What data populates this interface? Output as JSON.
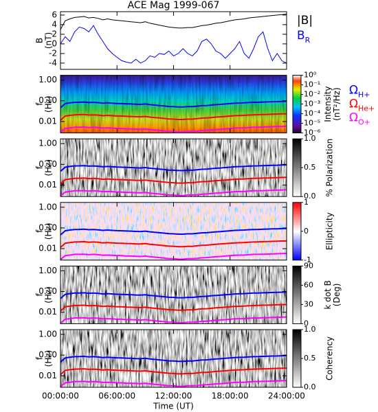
{
  "chart_data": [
    {
      "type": "line",
      "title": "ACE Mag 1999-067",
      "ylabel": [
        "B",
        "(nT)"
      ],
      "x": [
        0,
        0.5,
        1,
        1.5,
        2,
        2.5,
        3,
        3.5,
        4,
        4.5,
        5,
        5.5,
        6,
        6.5,
        7,
        7.5,
        8,
        8.5,
        9,
        9.5,
        10,
        10.5,
        11,
        11.5,
        12,
        12.5,
        13,
        13.5,
        14,
        14.5,
        15,
        15.5,
        16,
        16.5,
        17,
        17.5,
        18,
        18.5,
        19,
        19.5,
        20,
        20.5,
        21,
        21.5,
        22,
        22.5,
        23,
        23.5,
        24
      ],
      "xlim": [
        0,
        24
      ],
      "ylim": [
        -5.3,
        6.7
      ],
      "yticks": [
        -4,
        -2,
        0,
        2,
        4,
        6
      ],
      "series": [
        {
          "name": "|B|",
          "color": "#000000",
          "values": [
            3.0,
            4.8,
            5.2,
            5.5,
            5.6,
            5.7,
            5.4,
            5.5,
            5.3,
            5.0,
            5.2,
            5.0,
            4.9,
            4.8,
            4.7,
            4.6,
            4.5,
            4.4,
            4.6,
            4.3,
            4.1,
            3.9,
            3.7,
            3.5,
            3.4,
            3.3,
            3.3,
            3.4,
            3.4,
            3.6,
            3.8,
            3.9,
            4.1,
            4.3,
            4.4,
            4.6,
            4.8,
            5.0,
            5.1,
            5.2,
            5.4,
            5.5,
            5.6,
            5.7,
            5.8,
            5.9,
            6.0,
            6.1,
            6.2
          ]
        },
        {
          "name": "B",
          "subscript": "R",
          "color": "#0000ff",
          "values": [
            0,
            1.5,
            0.5,
            2.5,
            3.5,
            3.2,
            2.5,
            3.8,
            2.0,
            0.5,
            -1.0,
            -2.0,
            -2.8,
            -3.5,
            -3.8,
            -4.0,
            -3.2,
            -4.0,
            -3.5,
            -2.5,
            -2.8,
            -2.0,
            -2.2,
            -1.5,
            -2.5,
            -2.0,
            -1.0,
            -2.0,
            -2.5,
            -1.5,
            0.5,
            1.0,
            0.0,
            -1.5,
            -2.0,
            -3.0,
            -2.0,
            -1.0,
            0.5,
            -2.0,
            -3.0,
            -1.0,
            1.5,
            2.5,
            -1.0,
            -3.5,
            -2.0,
            -3.5,
            -4.0
          ]
        }
      ]
    },
    {
      "type": "spectrogram",
      "ylabel": [
        "f",
        "(Hz)"
      ],
      "log_y": true,
      "xlim": [
        0,
        24
      ],
      "ylim": [
        0.0028,
        1.7
      ],
      "yticks": [
        {
          "value": 1,
          "label": "1.00"
        },
        {
          "value": 0.1,
          "label": "0.10"
        },
        {
          "value": 0.01,
          "label": "0.01"
        }
      ],
      "x": [
        0,
        0.5,
        1,
        1.5,
        2,
        2.5,
        3,
        3.5,
        4,
        4.5,
        5,
        5.5,
        6,
        6.5,
        7,
        7.5,
        8,
        8.5,
        9,
        9.5,
        10,
        10.5,
        11,
        11.5,
        12,
        12.5,
        13,
        13.5,
        14,
        14.5,
        15,
        15.5,
        16,
        16.5,
        17,
        17.5,
        18,
        18.5,
        19,
        19.5,
        20,
        20.5,
        21,
        21.5,
        22,
        22.5,
        23,
        23.5,
        24
      ],
      "series": [
        {
          "name": "Ω",
          "subscript": "H+",
          "color": "#0000ff",
          "values": [
            0.046,
            0.073,
            0.079,
            0.084,
            0.085,
            0.087,
            0.082,
            0.084,
            0.081,
            0.076,
            0.079,
            0.076,
            0.074,
            0.073,
            0.071,
            0.07,
            0.068,
            0.067,
            0.07,
            0.065,
            0.062,
            0.059,
            0.056,
            0.053,
            0.052,
            0.05,
            0.05,
            0.052,
            0.052,
            0.055,
            0.058,
            0.059,
            0.062,
            0.065,
            0.067,
            0.07,
            0.073,
            0.076,
            0.078,
            0.079,
            0.082,
            0.084,
            0.085,
            0.087,
            0.088,
            0.09,
            0.091,
            0.093,
            0.094
          ]
        },
        {
          "name": "Ω",
          "subscript": "He+",
          "color": "#ff0000",
          "values": [
            0.0115,
            0.0183,
            0.0198,
            0.021,
            0.0213,
            0.0218,
            0.0205,
            0.021,
            0.0203,
            0.019,
            0.0198,
            0.019,
            0.0185,
            0.0183,
            0.0178,
            0.0175,
            0.017,
            0.0168,
            0.0175,
            0.0163,
            0.0155,
            0.0148,
            0.014,
            0.0133,
            0.013,
            0.0125,
            0.0125,
            0.013,
            0.013,
            0.0138,
            0.0145,
            0.0148,
            0.0155,
            0.0163,
            0.0168,
            0.0175,
            0.0183,
            0.019,
            0.0195,
            0.0198,
            0.0205,
            0.021,
            0.0213,
            0.0218,
            0.022,
            0.0225,
            0.0228,
            0.0233,
            0.0235
          ]
        },
        {
          "name": "Ω",
          "subscript": "O+",
          "color": "#ff00ff",
          "values": [
            0.003,
            0.0046,
            0.0049,
            0.0053,
            0.0053,
            0.0054,
            0.0051,
            0.0053,
            0.0051,
            0.0048,
            0.0049,
            0.0048,
            0.0046,
            0.0046,
            0.0044,
            0.0044,
            0.0043,
            0.0042,
            0.0044,
            0.0041,
            0.0039,
            0.0037,
            0.0035,
            0.0033,
            0.0033,
            0.0031,
            0.0031,
            0.0033,
            0.0033,
            0.0034,
            0.0036,
            0.0037,
            0.0039,
            0.0041,
            0.0042,
            0.0044,
            0.0046,
            0.0048,
            0.0049,
            0.0049,
            0.0051,
            0.0053,
            0.0053,
            0.0054,
            0.0055,
            0.0056,
            0.0057,
            0.0058,
            0.0059
          ]
        }
      ],
      "colorbar": {
        "colormap": "rainbow",
        "log": true,
        "lim": [
          1e-06,
          1
        ],
        "label": [
          "Intensity",
          "(nT²/Hz)"
        ],
        "ticks": [
          {
            "value": 1,
            "label": "10⁰"
          },
          {
            "value": 0.1,
            "label": "10⁻¹"
          },
          {
            "value": 0.01,
            "label": "10⁻²"
          },
          {
            "value": 0.001,
            "label": "10⁻³"
          },
          {
            "value": 0.0001,
            "label": "10⁻⁴"
          },
          {
            "value": 1e-05,
            "label": "10⁻⁵"
          },
          {
            "value": 1e-06,
            "label": "10⁻⁶"
          }
        ]
      }
    },
    {
      "type": "spectrogram",
      "ylabel": [
        "f",
        "(Hz)"
      ],
      "log_y": true,
      "xlim": [
        0,
        24
      ],
      "ylim": [
        0.0028,
        1.7
      ],
      "yticks": [
        {
          "value": 1,
          "label": "1.00"
        },
        {
          "value": 0.1,
          "label": "0.10"
        },
        {
          "value": 0.01,
          "label": "0.01"
        }
      ],
      "colorbar": {
        "colormap": "gray",
        "lim": [
          0,
          1
        ],
        "label": [
          "% Polarization"
        ],
        "ticks": [
          {
            "value": 0,
            "label": "0.0"
          },
          0.5,
          {
            "value": 1,
            "label": "1.0"
          }
        ]
      }
    },
    {
      "type": "spectrogram",
      "ylabel": [
        "f",
        "(Hz)"
      ],
      "log_y": true,
      "xlim": [
        0,
        24
      ],
      "ylim": [
        0.0028,
        1.7
      ],
      "yticks": [
        {
          "value": 1,
          "label": "1.00"
        },
        {
          "value": 0.1,
          "label": "0.10"
        },
        {
          "value": 0.01,
          "label": "0.01"
        }
      ],
      "colorbar": {
        "colormap": "bwr",
        "lim": [
          -1,
          1
        ],
        "label": [
          "Ellipticity"
        ],
        "ticks": [
          -1,
          0,
          1
        ]
      }
    },
    {
      "type": "spectrogram",
      "ylabel": [
        "f",
        "(Hz)"
      ],
      "log_y": true,
      "xlim": [
        0,
        24
      ],
      "ylim": [
        0.0028,
        1.7
      ],
      "yticks": [
        {
          "value": 1,
          "label": "1.00"
        },
        {
          "value": 0.1,
          "label": "0.10"
        },
        {
          "value": 0.01,
          "label": "0.01"
        }
      ],
      "colorbar": {
        "colormap": "gray",
        "lim": [
          0,
          90
        ],
        "label": [
          "k dot B",
          "(Deg)"
        ],
        "ticks": [
          0,
          30,
          60,
          90
        ]
      }
    },
    {
      "type": "spectrogram",
      "ylabel": [
        "f",
        "(Hz)"
      ],
      "log_y": true,
      "xlim": [
        0,
        24
      ],
      "ylim": [
        0.0028,
        1.7
      ],
      "yticks": [
        {
          "value": 1,
          "label": "1.00"
        },
        {
          "value": 0.1,
          "label": "0.10"
        },
        {
          "value": 0.01,
          "label": "0.01"
        }
      ],
      "colorbar": {
        "colormap": "gray",
        "lim": [
          0,
          1
        ],
        "label": [
          "Coherency"
        ],
        "ticks": [
          {
            "value": 0,
            "label": "0.0"
          },
          0.5,
          {
            "value": 1,
            "label": "1.0"
          }
        ]
      },
      "xlabel": "Time (UT)",
      "xticks": [
        {
          "value": 0,
          "label": "00:00:00"
        },
        {
          "value": 6,
          "label": "06:00:00"
        },
        {
          "value": 12,
          "label": "12:00:00"
        },
        {
          "value": 18,
          "label": "18:00:00"
        },
        {
          "value": 24,
          "label": "24:00:00"
        }
      ]
    }
  ]
}
